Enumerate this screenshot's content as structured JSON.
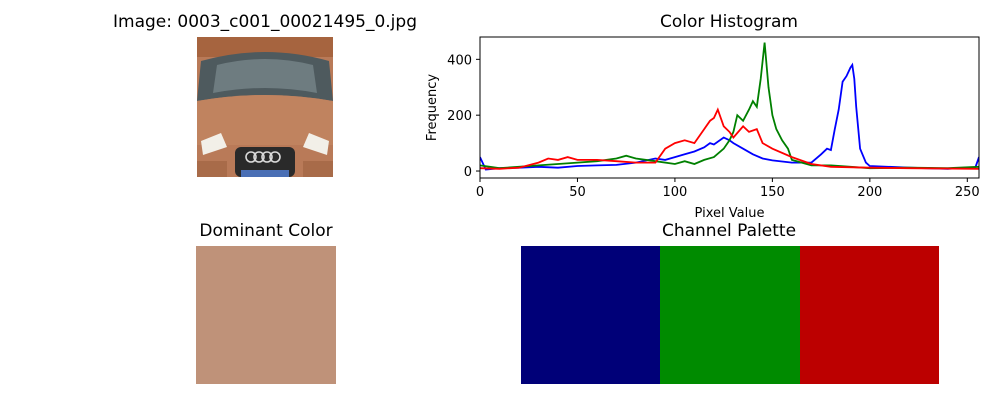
{
  "image_panel": {
    "title": "Image: 0003_c001_00021495_0.jpg"
  },
  "dominant_panel": {
    "title": "Dominant Color",
    "color": "#bf9279"
  },
  "palette_panel": {
    "title": "Channel Palette",
    "colors": [
      "#000078",
      "#008b00",
      "#bc0000"
    ]
  },
  "chart_data": {
    "type": "line",
    "title": "Color Histogram",
    "xlabel": "Pixel Value",
    "ylabel": "Frequency",
    "xlim": [
      0,
      256
    ],
    "ylim": [
      -25,
      480
    ],
    "xticks": [
      0,
      50,
      100,
      150,
      200,
      250
    ],
    "yticks": [
      0,
      200,
      400
    ],
    "legend": "none",
    "series": [
      {
        "color": "#0000ff",
        "points": [
          [
            0,
            50
          ],
          [
            3,
            5
          ],
          [
            10,
            10
          ],
          [
            20,
            12
          ],
          [
            30,
            15
          ],
          [
            40,
            12
          ],
          [
            50,
            18
          ],
          [
            60,
            20
          ],
          [
            70,
            22
          ],
          [
            80,
            30
          ],
          [
            90,
            45
          ],
          [
            95,
            40
          ],
          [
            100,
            50
          ],
          [
            105,
            60
          ],
          [
            110,
            70
          ],
          [
            115,
            85
          ],
          [
            118,
            100
          ],
          [
            120,
            95
          ],
          [
            125,
            120
          ],
          [
            128,
            110
          ],
          [
            130,
            100
          ],
          [
            135,
            80
          ],
          [
            140,
            60
          ],
          [
            145,
            45
          ],
          [
            150,
            38
          ],
          [
            160,
            30
          ],
          [
            170,
            30
          ],
          [
            175,
            60
          ],
          [
            178,
            80
          ],
          [
            180,
            75
          ],
          [
            182,
            150
          ],
          [
            184,
            220
          ],
          [
            186,
            320
          ],
          [
            188,
            340
          ],
          [
            190,
            370
          ],
          [
            191,
            380
          ],
          [
            192,
            330
          ],
          [
            193,
            230
          ],
          [
            195,
            80
          ],
          [
            198,
            30
          ],
          [
            200,
            18
          ],
          [
            220,
            12
          ],
          [
            240,
            8
          ],
          [
            250,
            12
          ],
          [
            254,
            10
          ],
          [
            256,
            50
          ]
        ]
      },
      {
        "color": "#008000",
        "points": [
          [
            0,
            20
          ],
          [
            10,
            10
          ],
          [
            20,
            15
          ],
          [
            30,
            20
          ],
          [
            40,
            25
          ],
          [
            50,
            30
          ],
          [
            60,
            35
          ],
          [
            70,
            45
          ],
          [
            75,
            55
          ],
          [
            80,
            45
          ],
          [
            90,
            35
          ],
          [
            100,
            25
          ],
          [
            105,
            35
          ],
          [
            110,
            25
          ],
          [
            115,
            40
          ],
          [
            120,
            50
          ],
          [
            125,
            80
          ],
          [
            128,
            110
          ],
          [
            130,
            140
          ],
          [
            132,
            200
          ],
          [
            135,
            180
          ],
          [
            138,
            220
          ],
          [
            140,
            250
          ],
          [
            142,
            230
          ],
          [
            144,
            330
          ],
          [
            146,
            460
          ],
          [
            148,
            300
          ],
          [
            150,
            200
          ],
          [
            152,
            150
          ],
          [
            155,
            110
          ],
          [
            158,
            80
          ],
          [
            160,
            40
          ],
          [
            170,
            20
          ],
          [
            180,
            20
          ],
          [
            190,
            15
          ],
          [
            200,
            10
          ],
          [
            220,
            12
          ],
          [
            240,
            10
          ],
          [
            256,
            15
          ]
        ]
      },
      {
        "color": "#ff0000",
        "points": [
          [
            0,
            10
          ],
          [
            10,
            8
          ],
          [
            20,
            12
          ],
          [
            30,
            30
          ],
          [
            35,
            45
          ],
          [
            40,
            40
          ],
          [
            45,
            50
          ],
          [
            50,
            40
          ],
          [
            60,
            40
          ],
          [
            70,
            35
          ],
          [
            80,
            30
          ],
          [
            90,
            30
          ],
          [
            95,
            80
          ],
          [
            100,
            100
          ],
          [
            105,
            110
          ],
          [
            110,
            100
          ],
          [
            115,
            150
          ],
          [
            118,
            180
          ],
          [
            120,
            190
          ],
          [
            122,
            220
          ],
          [
            125,
            160
          ],
          [
            128,
            140
          ],
          [
            130,
            120
          ],
          [
            135,
            160
          ],
          [
            138,
            140
          ],
          [
            142,
            150
          ],
          [
            145,
            100
          ],
          [
            150,
            80
          ],
          [
            160,
            50
          ],
          [
            170,
            25
          ],
          [
            180,
            15
          ],
          [
            200,
            12
          ],
          [
            220,
            10
          ],
          [
            256,
            8
          ]
        ]
      }
    ]
  }
}
